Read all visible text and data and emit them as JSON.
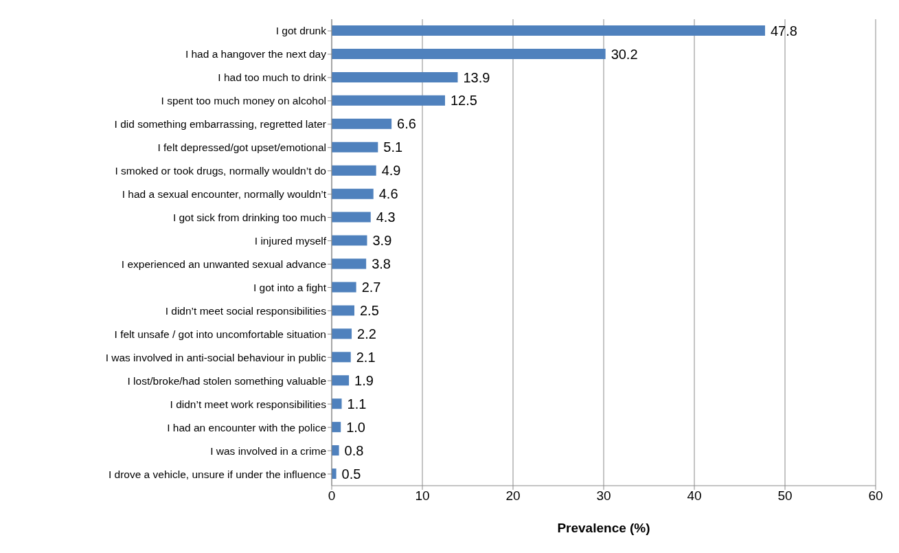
{
  "chart_data": {
    "type": "bar",
    "orientation": "horizontal",
    "xlabel": "Prevalence (%)",
    "categories": [
      "I got drunk",
      "I had a hangover the next day",
      "I had too much to drink",
      "I spent too much money on alcohol",
      "I did something embarrassing, regretted later",
      "I felt depressed/got upset/emotional",
      "I smoked or took drugs, normally wouldn’t do",
      "I had a sexual encounter, normally wouldn’t",
      "I got sick from drinking too much",
      "I injured myself",
      "I experienced an unwanted sexual advance",
      "I got into a fight",
      "I didn’t meet social responsibilities",
      "I felt unsafe / got into uncomfortable situation",
      "I was involved in anti-social behaviour in public",
      "I lost/broke/had stolen something valuable",
      "I didn’t meet work responsibilities",
      "I had an encounter with the police",
      "I was involved in a crime",
      "I drove a vehicle, unsure if under the influence"
    ],
    "values": [
      47.8,
      30.2,
      13.9,
      12.5,
      6.6,
      5.1,
      4.9,
      4.6,
      4.3,
      3.9,
      3.8,
      2.7,
      2.5,
      2.2,
      2.1,
      1.9,
      1.1,
      1.0,
      0.8,
      0.5
    ],
    "value_labels": [
      "47.8",
      "30.2",
      "13.9",
      "12.5",
      "6.6",
      "5.1",
      "4.9",
      "4.6",
      "4.3",
      "3.9",
      "3.8",
      "2.7",
      "2.5",
      "2.2",
      "2.1",
      "1.9",
      "1.1",
      "1.0",
      "0.8",
      "0.5"
    ],
    "color": "#4f81bd",
    "xlim": [
      0,
      60
    ],
    "xticks": [
      0,
      10,
      20,
      30,
      40,
      50,
      60
    ],
    "grid": "x"
  }
}
